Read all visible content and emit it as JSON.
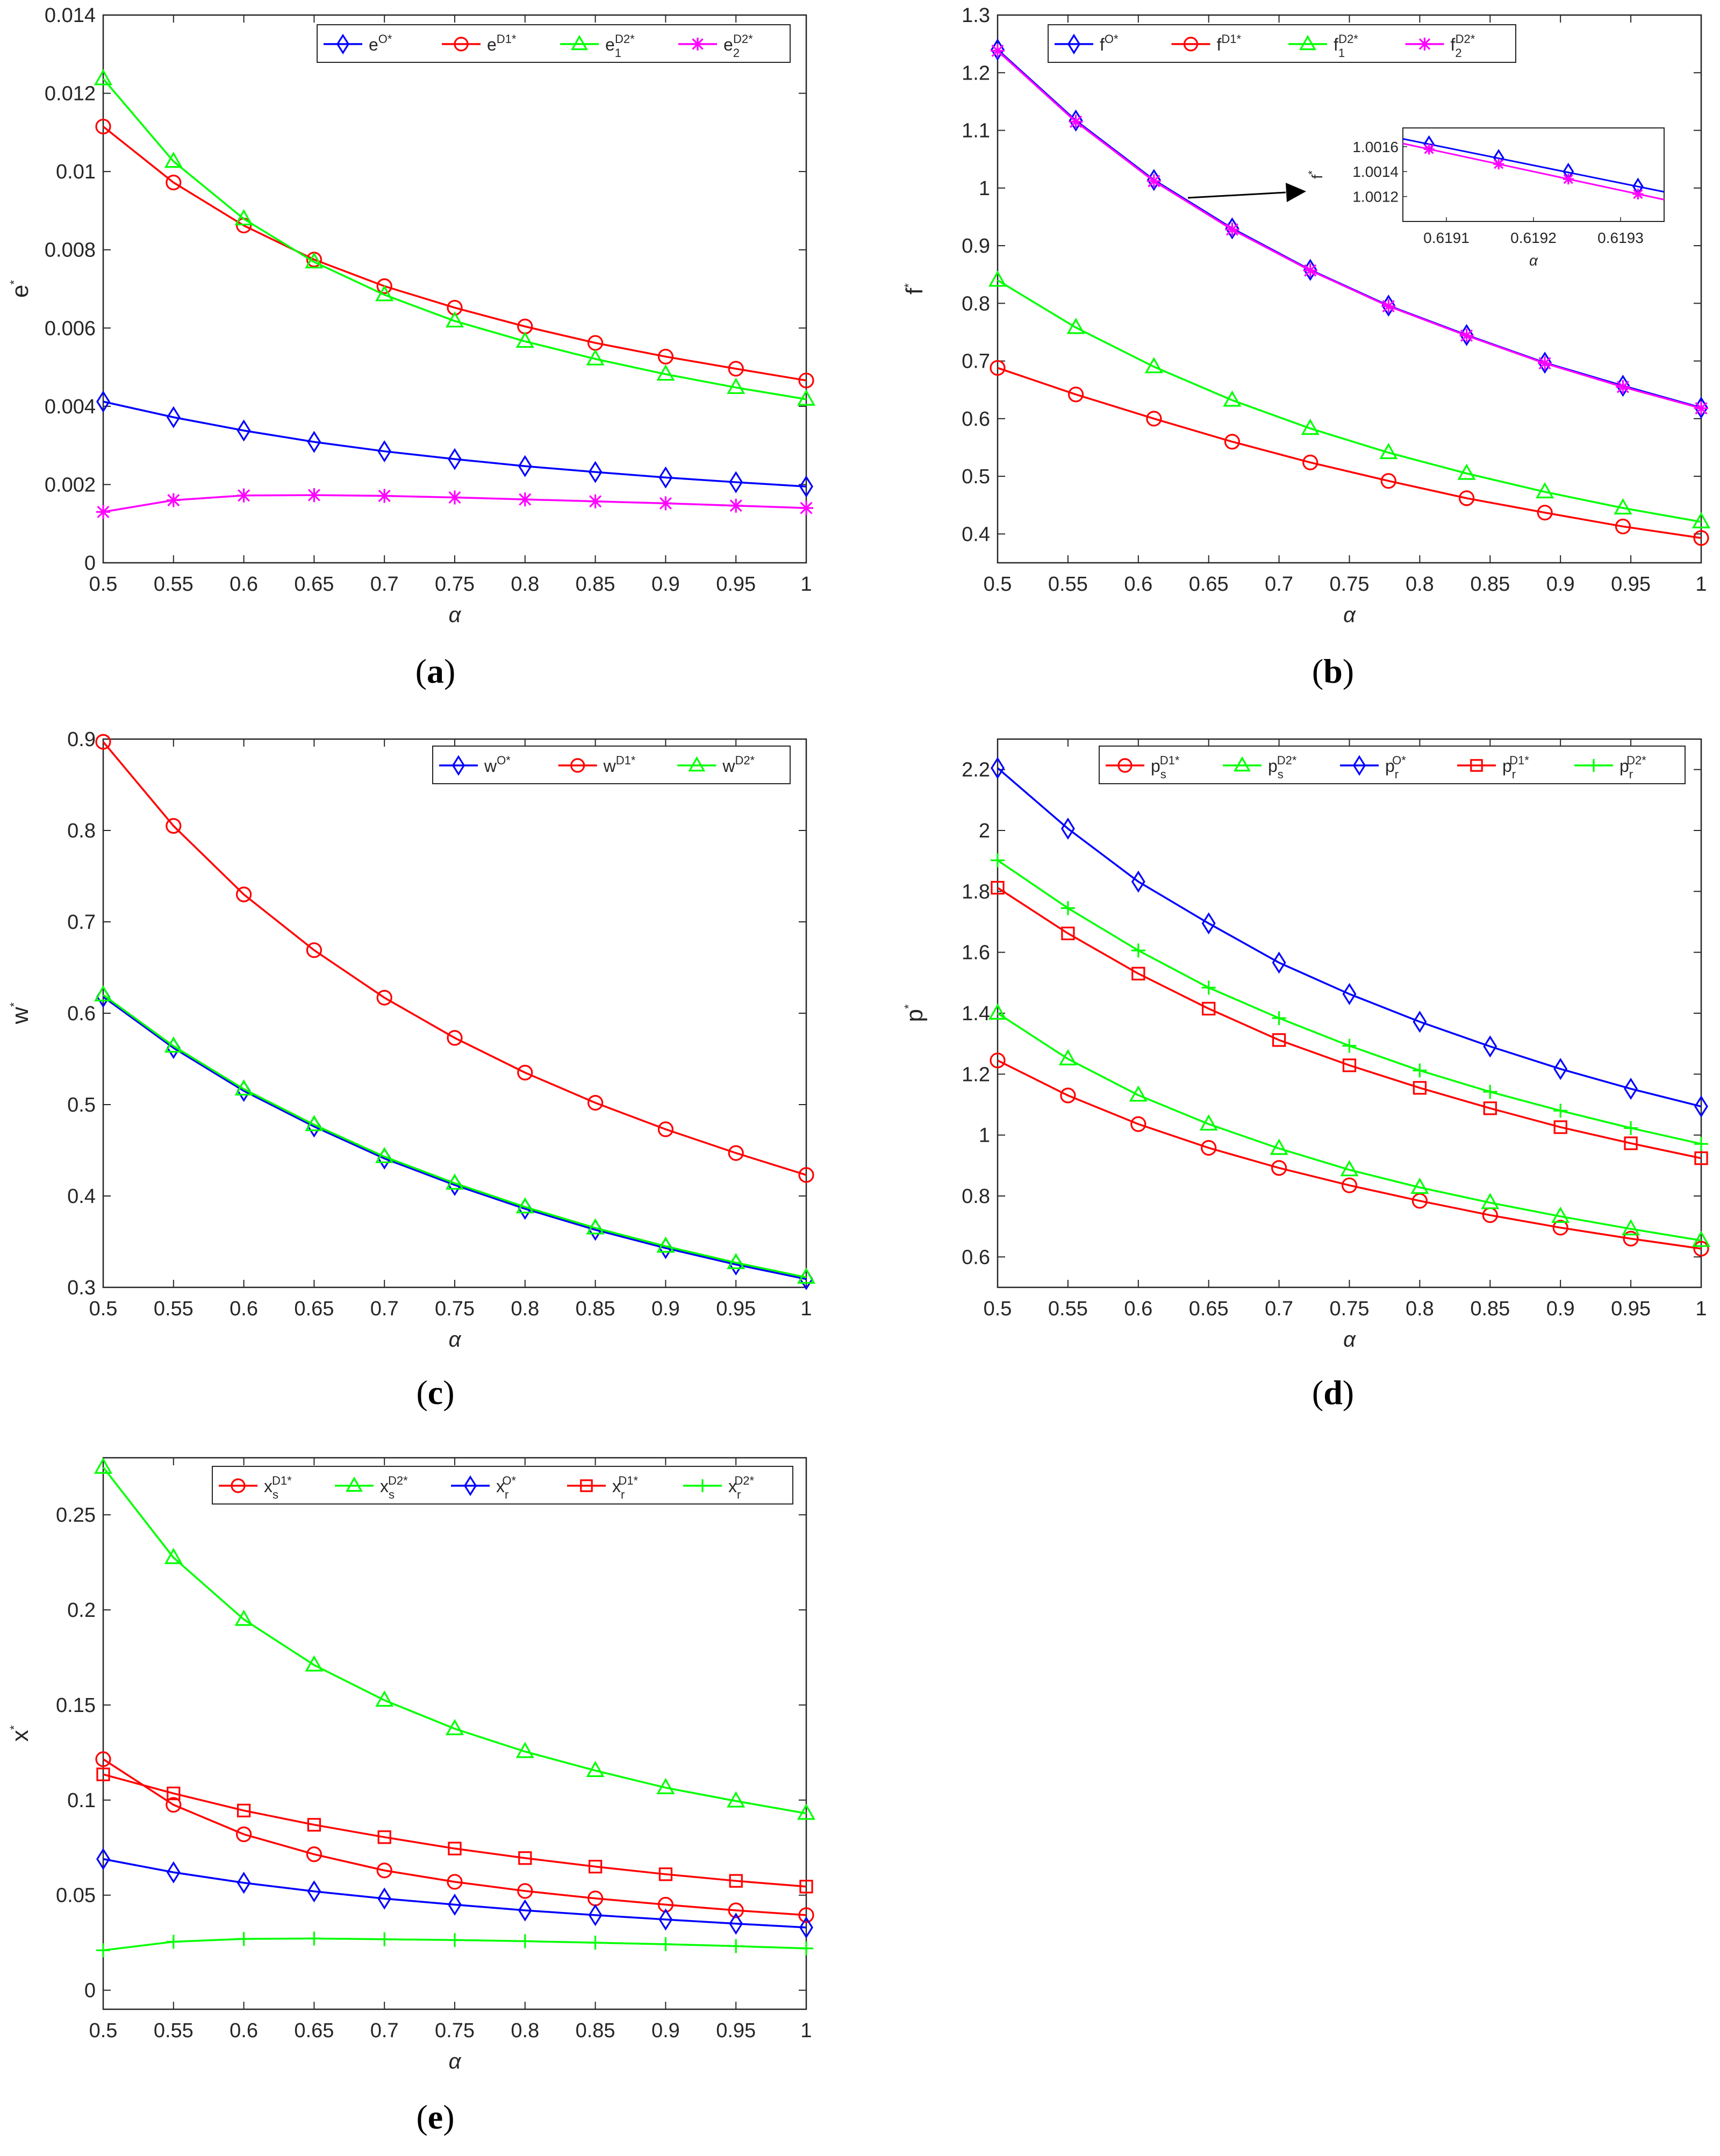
{
  "chart_data": [
    {
      "id": "a",
      "type": "line",
      "caption": "a",
      "xlabel": "α",
      "ylabel": "e",
      "ylabel_sup": "*",
      "xlim": [
        0.5,
        1
      ],
      "ylim": [
        0,
        0.014
      ],
      "xticks": [
        "0.5",
        "0.55",
        "0.6",
        "0.65",
        "0.7",
        "0.75",
        "0.8",
        "0.85",
        "0.9",
        "0.95",
        "1"
      ],
      "yticks": [
        "0",
        "0.002",
        "0.004",
        "0.006",
        "0.008",
        "0.01",
        "0.012",
        "0.014"
      ],
      "x": [
        0.5,
        0.55,
        0.6,
        0.65,
        0.7,
        0.75,
        0.8,
        0.85,
        0.9,
        0.95,
        1
      ],
      "series": [
        {
          "name": "e",
          "sup": "O*",
          "sub": "",
          "color": "#0000ff",
          "marker": "diamond",
          "values": [
            0.00412,
            0.00372,
            0.00338,
            0.00309,
            0.00285,
            0.00265,
            0.00247,
            0.00232,
            0.00218,
            0.00206,
            0.00195
          ]
        },
        {
          "name": "e",
          "sup": "D1*",
          "sub": "",
          "color": "#ff0000",
          "marker": "circle",
          "values": [
            0.01115,
            0.00972,
            0.00862,
            0.00775,
            0.00707,
            0.00652,
            0.00604,
            0.00562,
            0.00527,
            0.00496,
            0.00466
          ]
        },
        {
          "name": "e",
          "sup": "D2*",
          "sub": "1",
          "color": "#00ff00",
          "marker": "triangle",
          "values": [
            0.01237,
            0.01026,
            0.00879,
            0.00769,
            0.00685,
            0.00618,
            0.00566,
            0.00521,
            0.00482,
            0.00448,
            0.00418
          ]
        },
        {
          "name": "e",
          "sup": "D2*",
          "sub": "2",
          "color": "#ff00ff",
          "marker": "star",
          "values": [
            0.0013,
            0.0016,
            0.00172,
            0.00173,
            0.00171,
            0.00167,
            0.00162,
            0.00157,
            0.00152,
            0.00146,
            0.0014
          ]
        }
      ]
    },
    {
      "id": "b",
      "type": "line",
      "caption": "b",
      "xlabel": "α",
      "ylabel": "f",
      "ylabel_sup": "*",
      "xlim": [
        0.5,
        1
      ],
      "ylim": [
        0.35,
        1.3
      ],
      "xticks": [
        "0.5",
        "0.55",
        "0.6",
        "0.65",
        "0.7",
        "0.75",
        "0.8",
        "0.85",
        "0.9",
        "0.95",
        "1"
      ],
      "yticks": [
        "0.4",
        "0.5",
        "0.6",
        "0.7",
        "0.8",
        "0.9",
        "1",
        "1.1",
        "1.2",
        "1.3"
      ],
      "x": [
        0.5,
        0.5556,
        0.6111,
        0.6667,
        0.7222,
        0.7778,
        0.8333,
        0.8889,
        0.9444,
        1
      ],
      "series": [
        {
          "name": "f",
          "sup": "O*",
          "sub": "",
          "color": "#0000ff",
          "marker": "diamond",
          "values": [
            1.24,
            1.117,
            1.014,
            0.93,
            0.858,
            0.796,
            0.745,
            0.697,
            0.657,
            0.619
          ]
        },
        {
          "name": "f",
          "sup": "D1*",
          "sub": "",
          "color": "#ff0000",
          "marker": "circle",
          "values": [
            0.688,
            0.642,
            0.6,
            0.56,
            0.524,
            0.492,
            0.462,
            0.437,
            0.413,
            0.393
          ]
        },
        {
          "name": "f",
          "sup": "D2*",
          "sub": "1",
          "color": "#00ff00",
          "marker": "triangle",
          "values": [
            0.84,
            0.758,
            0.69,
            0.632,
            0.583,
            0.541,
            0.505,
            0.473,
            0.445,
            0.421
          ]
        },
        {
          "name": "f",
          "sup": "D2*",
          "sub": "2",
          "color": "#ff00ff",
          "marker": "star",
          "values": [
            1.238,
            1.115,
            1.012,
            0.928,
            0.857,
            0.795,
            0.744,
            0.696,
            0.655,
            0.618
          ]
        }
      ],
      "inset": {
        "xlabel": "α",
        "ylabel": "f",
        "ylabel_sup": "*",
        "xlim": [
          0.61905,
          0.61935
        ],
        "ylim": [
          1.001,
          1.00175
        ],
        "xticks": [
          "0.6191",
          "0.6192",
          "0.6193"
        ],
        "yticks": [
          "1.0012",
          "1.0014",
          "1.0016"
        ],
        "x": [
          0.61908,
          0.61916,
          0.61924,
          0.61932
        ],
        "series": [
          {
            "color": "#0000ff",
            "marker": "diamond",
            "values": [
              1.00162,
              1.00151,
              1.0014,
              1.00128
            ]
          },
          {
            "color": "#ff00ff",
            "marker": "star",
            "values": [
              1.00158,
              1.00146,
              1.00134,
              1.00122
            ]
          }
        ]
      }
    },
    {
      "id": "c",
      "type": "line",
      "caption": "c",
      "xlabel": "α",
      "ylabel": "w",
      "ylabel_sup": "*",
      "xlim": [
        0.5,
        1
      ],
      "ylim": [
        0.3,
        0.9
      ],
      "xticks": [
        "0.5",
        "0.55",
        "0.6",
        "0.65",
        "0.7",
        "0.75",
        "0.8",
        "0.85",
        "0.9",
        "0.95",
        "1"
      ],
      "yticks": [
        "0.3",
        "0.4",
        "0.5",
        "0.6",
        "0.7",
        "0.8",
        "0.9"
      ],
      "x": [
        0.5,
        0.55,
        0.6,
        0.65,
        0.7,
        0.75,
        0.8,
        0.85,
        0.9,
        0.95,
        1
      ],
      "series": [
        {
          "name": "w",
          "sup": "O*",
          "sub": "",
          "color": "#0000ff",
          "marker": "diamond",
          "values": [
            0.618,
            0.562,
            0.515,
            0.476,
            0.441,
            0.412,
            0.386,
            0.363,
            0.343,
            0.325,
            0.309
          ]
        },
        {
          "name": "w",
          "sup": "D1*",
          "sub": "",
          "color": "#ff0000",
          "marker": "circle",
          "values": [
            0.897,
            0.805,
            0.73,
            0.669,
            0.617,
            0.573,
            0.535,
            0.502,
            0.473,
            0.447,
            0.423
          ]
        },
        {
          "name": "w",
          "sup": "D2*",
          "sub": "",
          "color": "#00ff00",
          "marker": "triangle",
          "values": [
            0.62,
            0.564,
            0.517,
            0.478,
            0.443,
            0.414,
            0.388,
            0.365,
            0.345,
            0.327,
            0.311
          ]
        }
      ]
    },
    {
      "id": "d",
      "type": "line",
      "caption": "d",
      "xlabel": "α",
      "ylabel": "p",
      "ylabel_sup": "*",
      "xlim": [
        0.5,
        1
      ],
      "ylim": [
        0.5,
        2.3
      ],
      "xticks": [
        "0.5",
        "0.55",
        "0.6",
        "0.65",
        "0.7",
        "0.75",
        "0.8",
        "0.85",
        "0.9",
        "0.95",
        "1"
      ],
      "yticks": [
        "0.6",
        "0.8",
        "1",
        "1.2",
        "1.4",
        "1.6",
        "1.8",
        "2",
        "2.2"
      ],
      "x": [
        0.5,
        0.55,
        0.6,
        0.65,
        0.7,
        0.75,
        0.8,
        0.85,
        0.9,
        0.95,
        1
      ],
      "series": [
        {
          "name": "p",
          "sup": "D1*",
          "sub": "s",
          "color": "#ff0000",
          "marker": "circle",
          "values": [
            1.245,
            1.13,
            1.036,
            0.958,
            0.892,
            0.835,
            0.784,
            0.737,
            0.696,
            0.66,
            0.627
          ]
        },
        {
          "name": "p",
          "sup": "D2*",
          "sub": "s",
          "color": "#00ff00",
          "marker": "triangle",
          "values": [
            1.4,
            1.25,
            1.131,
            1.036,
            0.956,
            0.886,
            0.828,
            0.778,
            0.733,
            0.692,
            0.654
          ]
        },
        {
          "name": "p",
          "sup": "O*",
          "sub": "r",
          "color": "#0000ff",
          "marker": "diamond",
          "values": [
            2.205,
            2.006,
            1.832,
            1.695,
            1.566,
            1.463,
            1.372,
            1.291,
            1.217,
            1.152,
            1.094
          ]
        },
        {
          "name": "p",
          "sup": "D1*",
          "sub": "r",
          "color": "#ff0000",
          "marker": "square",
          "values": [
            1.812,
            1.662,
            1.53,
            1.415,
            1.312,
            1.229,
            1.155,
            1.088,
            1.026,
            0.973,
            0.924
          ]
        },
        {
          "name": "p",
          "sup": "D2*",
          "sub": "r",
          "color": "#00ff00",
          "marker": "plus",
          "values": [
            1.902,
            1.745,
            1.606,
            1.484,
            1.384,
            1.293,
            1.212,
            1.142,
            1.08,
            1.023,
            0.971
          ]
        }
      ]
    },
    {
      "id": "e",
      "type": "line",
      "caption": "e",
      "xlabel": "α",
      "ylabel": "x",
      "ylabel_sup": "*",
      "xlim": [
        0.5,
        1
      ],
      "ylim": [
        -0.01,
        0.28
      ],
      "xticks": [
        "0.5",
        "0.55",
        "0.6",
        "0.65",
        "0.7",
        "0.75",
        "0.8",
        "0.85",
        "0.9",
        "0.95",
        "1"
      ],
      "yticks": [
        "0",
        "0.05",
        "0.1",
        "0.15",
        "0.2",
        "0.25"
      ],
      "x": [
        0.5,
        0.55,
        0.6,
        0.65,
        0.7,
        0.75,
        0.8,
        0.85,
        0.9,
        0.95,
        1
      ],
      "series": [
        {
          "name": "x",
          "sup": "D1*",
          "sub": "s",
          "color": "#ff0000",
          "marker": "circle",
          "values": [
            0.1215,
            0.0975,
            0.082,
            0.0715,
            0.063,
            0.057,
            0.0522,
            0.0483,
            0.045,
            0.042,
            0.0395
          ]
        },
        {
          "name": "x",
          "sup": "D2*",
          "sub": "s",
          "color": "#00ff00",
          "marker": "triangle",
          "values": [
            0.275,
            0.2275,
            0.195,
            0.171,
            0.1525,
            0.1375,
            0.1255,
            0.1155,
            0.1065,
            0.0995,
            0.093
          ]
        },
        {
          "name": "x",
          "sup": "O*",
          "sub": "r",
          "color": "#0000ff",
          "marker": "diamond",
          "values": [
            0.069,
            0.062,
            0.0565,
            0.052,
            0.0482,
            0.045,
            0.042,
            0.0395,
            0.0372,
            0.035,
            0.033
          ]
        },
        {
          "name": "x",
          "sup": "D1*",
          "sub": "r",
          "color": "#ff0000",
          "marker": "square",
          "values": [
            0.1135,
            0.1035,
            0.0945,
            0.087,
            0.0805,
            0.0745,
            0.0695,
            0.065,
            0.061,
            0.0575,
            0.0545
          ]
        },
        {
          "name": "x",
          "sup": "D2*",
          "sub": "r",
          "color": "#00ff00",
          "marker": "plus",
          "values": [
            0.021,
            0.0255,
            0.027,
            0.0272,
            0.0268,
            0.0264,
            0.0258,
            0.025,
            0.0242,
            0.0232,
            0.022
          ]
        }
      ]
    }
  ]
}
